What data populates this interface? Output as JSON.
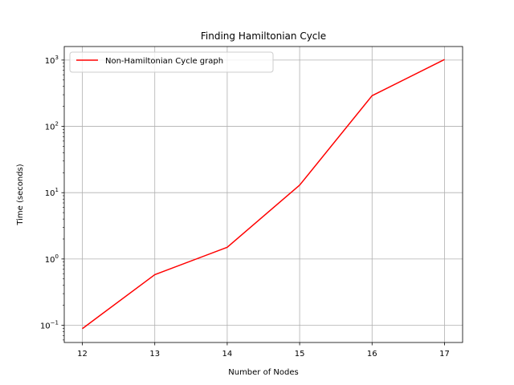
{
  "chart_data": {
    "type": "line",
    "title": "Finding Hamiltonian Cycle",
    "xlabel": "Number of Nodes",
    "ylabel": "Time (seconds)",
    "x": [
      12,
      13,
      14,
      15,
      16,
      17
    ],
    "xlim": [
      11.75,
      17.25
    ],
    "yscale": "log",
    "ylim": [
      0.055,
      1600
    ],
    "xticks": [
      "12",
      "13",
      "14",
      "15",
      "16",
      "17"
    ],
    "yticks": [
      {
        "value": 0.1,
        "base": "10",
        "exp": "−1"
      },
      {
        "value": 1,
        "base": "10",
        "exp": "0"
      },
      {
        "value": 10,
        "base": "10",
        "exp": "1"
      },
      {
        "value": 100,
        "base": "10",
        "exp": "2"
      },
      {
        "value": 1000,
        "base": "10",
        "exp": "3"
      }
    ],
    "grid": true,
    "legend_position": "upper-left",
    "series": [
      {
        "name": "Non-Hamiltonian Cycle graph",
        "color": "#ff0000",
        "values": [
          0.089,
          0.58,
          1.5,
          13,
          290,
          1020
        ]
      }
    ]
  }
}
